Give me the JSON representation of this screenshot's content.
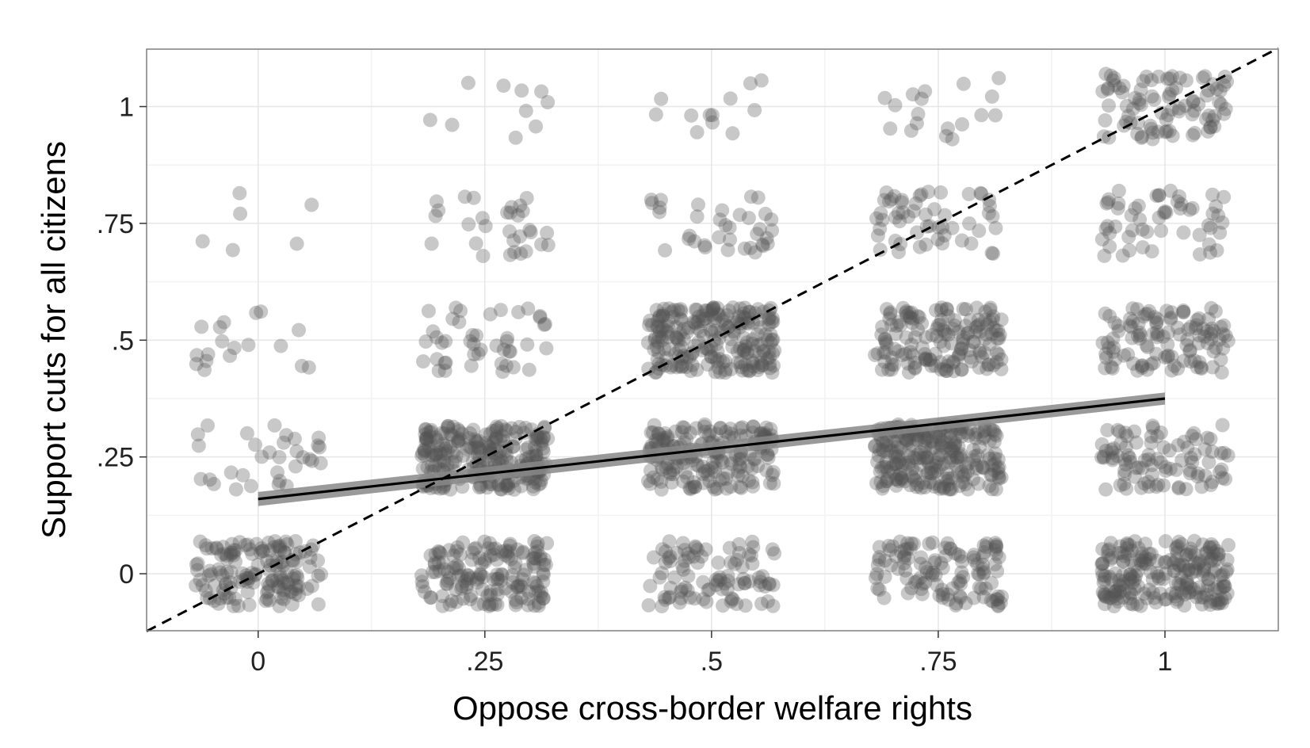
{
  "chart_data": {
    "type": "scatter",
    "xlabel": "Oppose cross-border welfare rights",
    "ylabel": "Support cuts for all citizens",
    "x_ticks": [
      {
        "value": 0,
        "label": "0"
      },
      {
        "value": 0.25,
        "label": ".25"
      },
      {
        "value": 0.5,
        "label": ".5"
      },
      {
        "value": 0.75,
        "label": ".75"
      },
      {
        "value": 1,
        "label": "1"
      }
    ],
    "y_ticks": [
      {
        "value": 0,
        "label": "0"
      },
      {
        "value": 0.25,
        "label": ".25"
      },
      {
        "value": 0.5,
        "label": ".5"
      },
      {
        "value": 0.75,
        "label": ".75"
      },
      {
        "value": 1,
        "label": "1"
      }
    ],
    "xlim": [
      -0.123,
      1.125
    ],
    "ylim": [
      -0.122,
      1.123
    ],
    "grid": true,
    "jitter": 0.07,
    "point_color": "#555555",
    "point_opacity": 0.32,
    "background": "#ffffff",
    "grid_color": "#e6e6e6",
    "panel_border_color": "#7f7f7f",
    "cell_counts": {
      "x": [
        0,
        0.25,
        0.5,
        0.75,
        1
      ],
      "y": [
        0,
        0.25,
        0.5,
        0.75,
        1
      ],
      "counts": [
        [
          150,
          32,
          18,
          6,
          0
        ],
        [
          160,
          260,
          45,
          30,
          10
        ],
        [
          95,
          190,
          230,
          36,
          12
        ],
        [
          120,
          260,
          160,
          55,
          18
        ],
        [
          220,
          95,
          115,
          55,
          90
        ]
      ]
    },
    "fit_line": {
      "x": [
        0,
        1
      ],
      "y": [
        0.16,
        0.375
      ],
      "ci_lower": [
        0.145,
        0.362
      ],
      "ci_upper": [
        0.175,
        0.388
      ],
      "color": "#000000",
      "band_color": "#888888"
    },
    "reference_line": {
      "x": [
        -0.123,
        1.125
      ],
      "y": [
        -0.123,
        1.125
      ],
      "style": "dashed",
      "color": "#000000"
    }
  }
}
